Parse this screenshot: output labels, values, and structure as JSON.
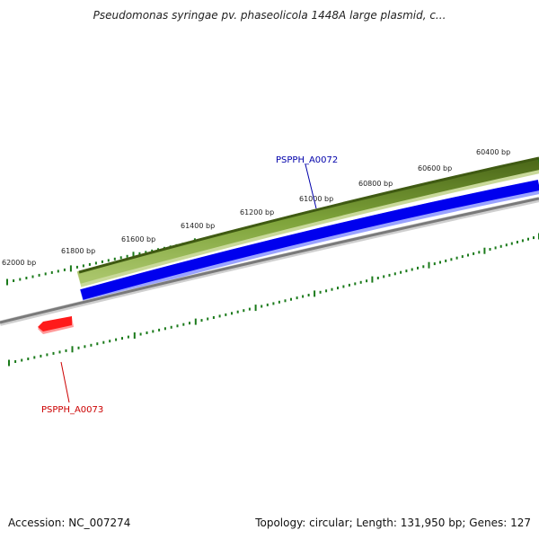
{
  "title": "Pseudomonas syringae pv. phaseolicola 1448A large plasmid, c...",
  "footer": {
    "accession_label": "Accession:",
    "accession": "NC_007274",
    "topology_label": "Topology:",
    "topology": "circular",
    "length_label": "Length:",
    "length": "131,950 bp",
    "genes_label": "Genes:",
    "genes": "127"
  },
  "ticks": [
    {
      "label": "62000 bp"
    },
    {
      "label": "61800 bp"
    },
    {
      "label": "61600 bp"
    },
    {
      "label": "61400 bp"
    },
    {
      "label": "61200 bp"
    },
    {
      "label": "61000 bp"
    },
    {
      "label": "60800 bp"
    },
    {
      "label": "60600 bp"
    },
    {
      "label": "60400 bp"
    }
  ],
  "genes": [
    {
      "name": "PSPPH_A0072",
      "strand": "forward",
      "color": "#0000aa"
    },
    {
      "name": "PSPPH_A0073",
      "strand": "reverse",
      "color": "#cc0000"
    }
  ],
  "colors": {
    "forward_tick": "#1a7a1a",
    "reverse_tick": "#1a7a1a",
    "olive_track": "#6b8e23",
    "blue_track": "#0000ee",
    "backbone": "#808080",
    "reverse_gene": "#ff0000"
  }
}
